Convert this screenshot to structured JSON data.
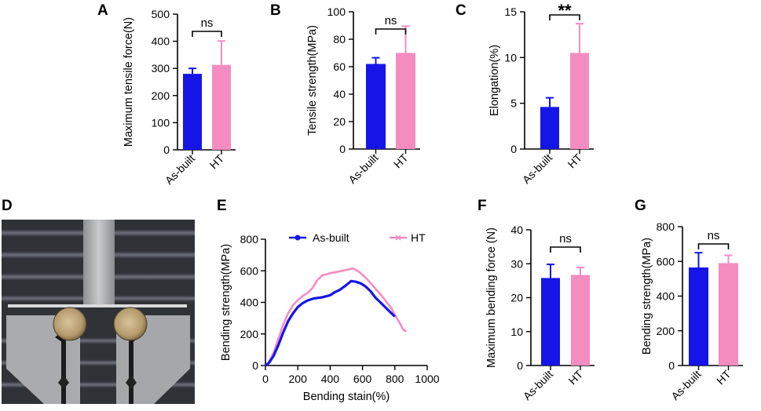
{
  "panels": {
    "A": "A",
    "B": "B",
    "C": "C",
    "D": "D",
    "E": "E",
    "F": "F",
    "G": "G"
  },
  "colors": {
    "as_built": "#1515e8",
    "ht": "#f58cc0",
    "axis": "#000000"
  },
  "photo": {
    "description_icon": "three-point-bending-fixture-photo"
  },
  "chart_data": [
    {
      "id": "A",
      "type": "bar",
      "categories": [
        "As-built",
        "HT"
      ],
      "values": [
        280,
        313
      ],
      "errors": [
        20,
        88
      ],
      "ylabel": "Maximum tensile force(N)",
      "ylim": [
        0,
        500
      ],
      "yticks": [
        0,
        100,
        200,
        300,
        400,
        500
      ],
      "significance": "ns"
    },
    {
      "id": "B",
      "type": "bar",
      "categories": [
        "As-built",
        "HT"
      ],
      "values": [
        62,
        70
      ],
      "errors": [
        4.5,
        19.5
      ],
      "ylabel": "Tensile strength(MPa)",
      "ylim": [
        0,
        100
      ],
      "yticks": [
        0,
        20,
        40,
        60,
        80,
        100
      ],
      "significance": "ns"
    },
    {
      "id": "C",
      "type": "bar",
      "categories": [
        "As-built",
        "HT"
      ],
      "values": [
        4.6,
        10.5
      ],
      "errors": [
        1.0,
        3.2
      ],
      "ylabel": "Elongation(%)",
      "ylim": [
        0,
        15
      ],
      "yticks": [
        0,
        5,
        10,
        15
      ],
      "significance": "**"
    },
    {
      "id": "E",
      "type": "line",
      "xlabel": "Bending stain(%)",
      "ylabel": "Bending  strength(MPa)",
      "xlim": [
        0,
        1000
      ],
      "ylim": [
        0,
        800
      ],
      "xticks": [
        0,
        200,
        400,
        600,
        800,
        1000
      ],
      "yticks": [
        0,
        200,
        400,
        600,
        800
      ],
      "series": [
        {
          "name": "As-built",
          "x": [
            0,
            20,
            50,
            80,
            110,
            140,
            170,
            200,
            230,
            260,
            300,
            350,
            400,
            430,
            460,
            500,
            530,
            560,
            590,
            620,
            650,
            680,
            710,
            740,
            770,
            790,
            800
          ],
          "y": [
            0,
            15,
            60,
            130,
            210,
            280,
            330,
            370,
            395,
            412,
            425,
            432,
            445,
            465,
            480,
            510,
            535,
            530,
            520,
            500,
            470,
            430,
            400,
            370,
            340,
            320,
            310
          ]
        },
        {
          "name": "HT",
          "x": [
            0,
            20,
            50,
            80,
            110,
            140,
            170,
            200,
            230,
            260,
            290,
            320,
            350,
            400,
            450,
            500,
            540,
            570,
            600,
            630,
            660,
            690,
            720,
            750,
            780,
            800,
            830,
            850,
            870
          ],
          "y": [
            0,
            20,
            80,
            170,
            260,
            330,
            380,
            415,
            440,
            460,
            490,
            540,
            570,
            585,
            595,
            605,
            615,
            600,
            575,
            545,
            510,
            475,
            440,
            400,
            360,
            320,
            270,
            230,
            215
          ]
        }
      ]
    },
    {
      "id": "F",
      "type": "bar",
      "categories": [
        "As-built",
        "HT"
      ],
      "values": [
        25.8,
        26.7
      ],
      "errors": [
        4.0,
        2.2
      ],
      "ylabel": "Maximum bending force  (N)",
      "ylim": [
        0,
        40
      ],
      "yticks": [
        0,
        10,
        20,
        30,
        40
      ],
      "significance": "ns"
    },
    {
      "id": "G",
      "type": "bar",
      "categories": [
        "As-built",
        "HT"
      ],
      "values": [
        565,
        590
      ],
      "errors": [
        85,
        45
      ],
      "ylabel": "Bending  strength(MPa)",
      "ylim": [
        0,
        800
      ],
      "yticks": [
        0,
        200,
        400,
        600,
        800
      ],
      "significance": "ns"
    }
  ]
}
